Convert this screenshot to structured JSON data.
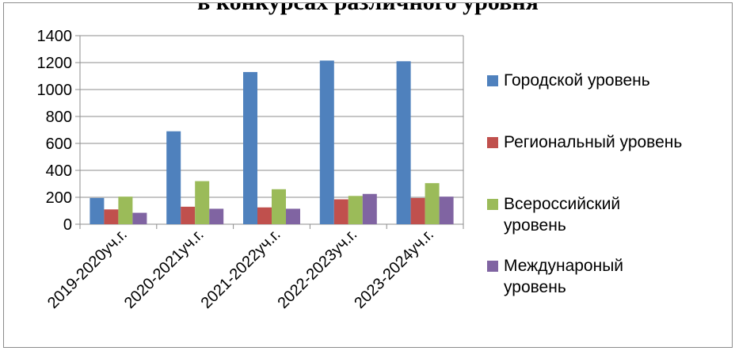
{
  "chart_data": {
    "type": "bar",
    "title": "в конкурсах различного уровня",
    "categories": [
      "2019-2020уч.г.",
      "2020-2021уч.г.",
      "2021-2022уч.г.",
      "2022-2023уч.г.",
      "2023-2024уч.г."
    ],
    "series": [
      {
        "name": "Городской уровень",
        "color": "#4f81bd",
        "values": [
          195,
          690,
          1130,
          1215,
          1210
        ]
      },
      {
        "name": "Региональный уровень",
        "color": "#c0504d",
        "values": [
          110,
          130,
          125,
          185,
          195
        ]
      },
      {
        "name": "Всероссийский уровень",
        "color": "#9bbb59",
        "values": [
          205,
          320,
          260,
          210,
          305
        ]
      },
      {
        "name": "Междунароный уровень",
        "color": "#8064a2",
        "values": [
          85,
          115,
          115,
          225,
          205
        ]
      }
    ],
    "ylim": [
      0,
      1400
    ],
    "yticks": [
      0,
      200,
      400,
      600,
      800,
      1000,
      1200,
      1400
    ],
    "grid": true,
    "legend_position": "right"
  }
}
